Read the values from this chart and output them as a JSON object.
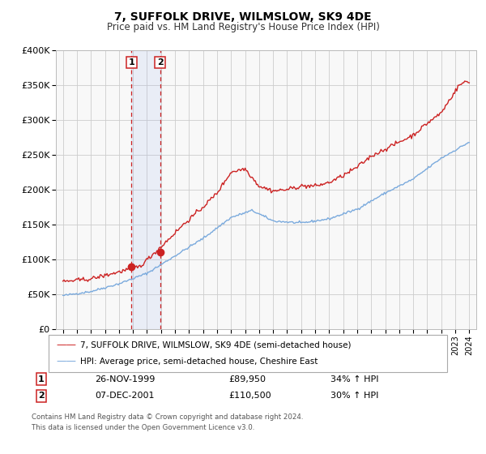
{
  "title": "7, SUFFOLK DRIVE, WILMSLOW, SK9 4DE",
  "subtitle": "Price paid vs. HM Land Registry's House Price Index (HPI)",
  "legend_line1": "7, SUFFOLK DRIVE, WILMSLOW, SK9 4DE (semi-detached house)",
  "legend_line2": "HPI: Average price, semi-detached house, Cheshire East",
  "transaction1_date": "26-NOV-1999",
  "transaction1_price": "£89,950",
  "transaction1_hpi": "34% ↑ HPI",
  "transaction1_x": 1999.9,
  "transaction1_y": 89950,
  "transaction2_date": "07-DEC-2001",
  "transaction2_price": "£110,500",
  "transaction2_hpi": "30% ↑ HPI",
  "transaction2_x": 2001.93,
  "transaction2_y": 110500,
  "hpi_color": "#7aaadd",
  "price_color": "#cc2222",
  "marker_color": "#cc2222",
  "footnote1": "Contains HM Land Registry data © Crown copyright and database right 2024.",
  "footnote2": "This data is licensed under the Open Government Licence v3.0.",
  "ylim": [
    0,
    400000
  ],
  "yticks": [
    0,
    50000,
    100000,
    150000,
    200000,
    250000,
    300000,
    350000,
    400000
  ],
  "xlim": [
    1994.5,
    2024.5
  ],
  "background_color": "#f8f8f8",
  "grid_color": "#cccccc",
  "shaded_region_x1": 1999.9,
  "shaded_region_x2": 2001.93
}
